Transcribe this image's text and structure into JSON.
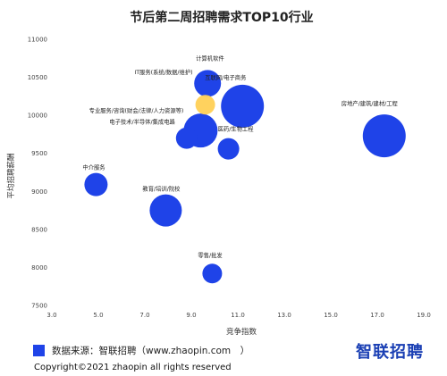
{
  "chart_data": {
    "type": "scatter",
    "title": "节后第二周招聘需求TOP10行业",
    "xlabel": "竞争指数",
    "ylabel": "平均招聘薪酬",
    "xlim": [
      3.0,
      19.0
    ],
    "ylim": [
      7500,
      11000
    ],
    "x_ticks": [
      "3.0",
      "5.0",
      "7.0",
      "9.0",
      "11.0",
      "13.0",
      "15.0",
      "17.0",
      "19.0"
    ],
    "y_ticks": [
      "7500",
      "8000",
      "8500",
      "9000",
      "9500",
      "10000",
      "10500",
      "11000"
    ],
    "grid": false,
    "legend": "bottom",
    "colors": {
      "primary": "#1f43e8",
      "highlight": "#ffd055"
    },
    "points": [
      {
        "label": "计算机软件",
        "x": 9.7,
        "y": 10420,
        "size": 15,
        "color": "primary"
      },
      {
        "label": "互联网/电子商务",
        "x": 11.2,
        "y": 10120,
        "size": 24,
        "color": "primary"
      },
      {
        "label": "IT服务(系统/数据/维护)",
        "x": 9.6,
        "y": 10140,
        "size": 11,
        "color": "highlight"
      },
      {
        "label": "专业服务/咨询(财会/法律/人力资源等)",
        "x": 9.4,
        "y": 9800,
        "size": 19,
        "color": "primary"
      },
      {
        "label": "电子技术/半导体/集成电路",
        "x": 8.8,
        "y": 9700,
        "size": 12,
        "color": "primary"
      },
      {
        "label": "房地产/建筑/建材/工程",
        "x": 17.3,
        "y": 9730,
        "size": 24,
        "color": "primary"
      },
      {
        "label": "医药/生物工程",
        "x": 10.6,
        "y": 9560,
        "size": 12,
        "color": "primary"
      },
      {
        "label": "中介服务",
        "x": 4.9,
        "y": 9090,
        "size": 13,
        "color": "primary"
      },
      {
        "label": "教育/培训/院校",
        "x": 7.9,
        "y": 8750,
        "size": 18,
        "color": "primary"
      },
      {
        "label": "零售/批发",
        "x": 9.9,
        "y": 7920,
        "size": 11,
        "color": "primary"
      }
    ]
  },
  "footer": {
    "source_label": "数据来源：智联招聘（www.zhaopin.com　）",
    "logo_text": "智联招聘",
    "copyright": "Copyright©2021 zhaopin all rights reserved"
  }
}
